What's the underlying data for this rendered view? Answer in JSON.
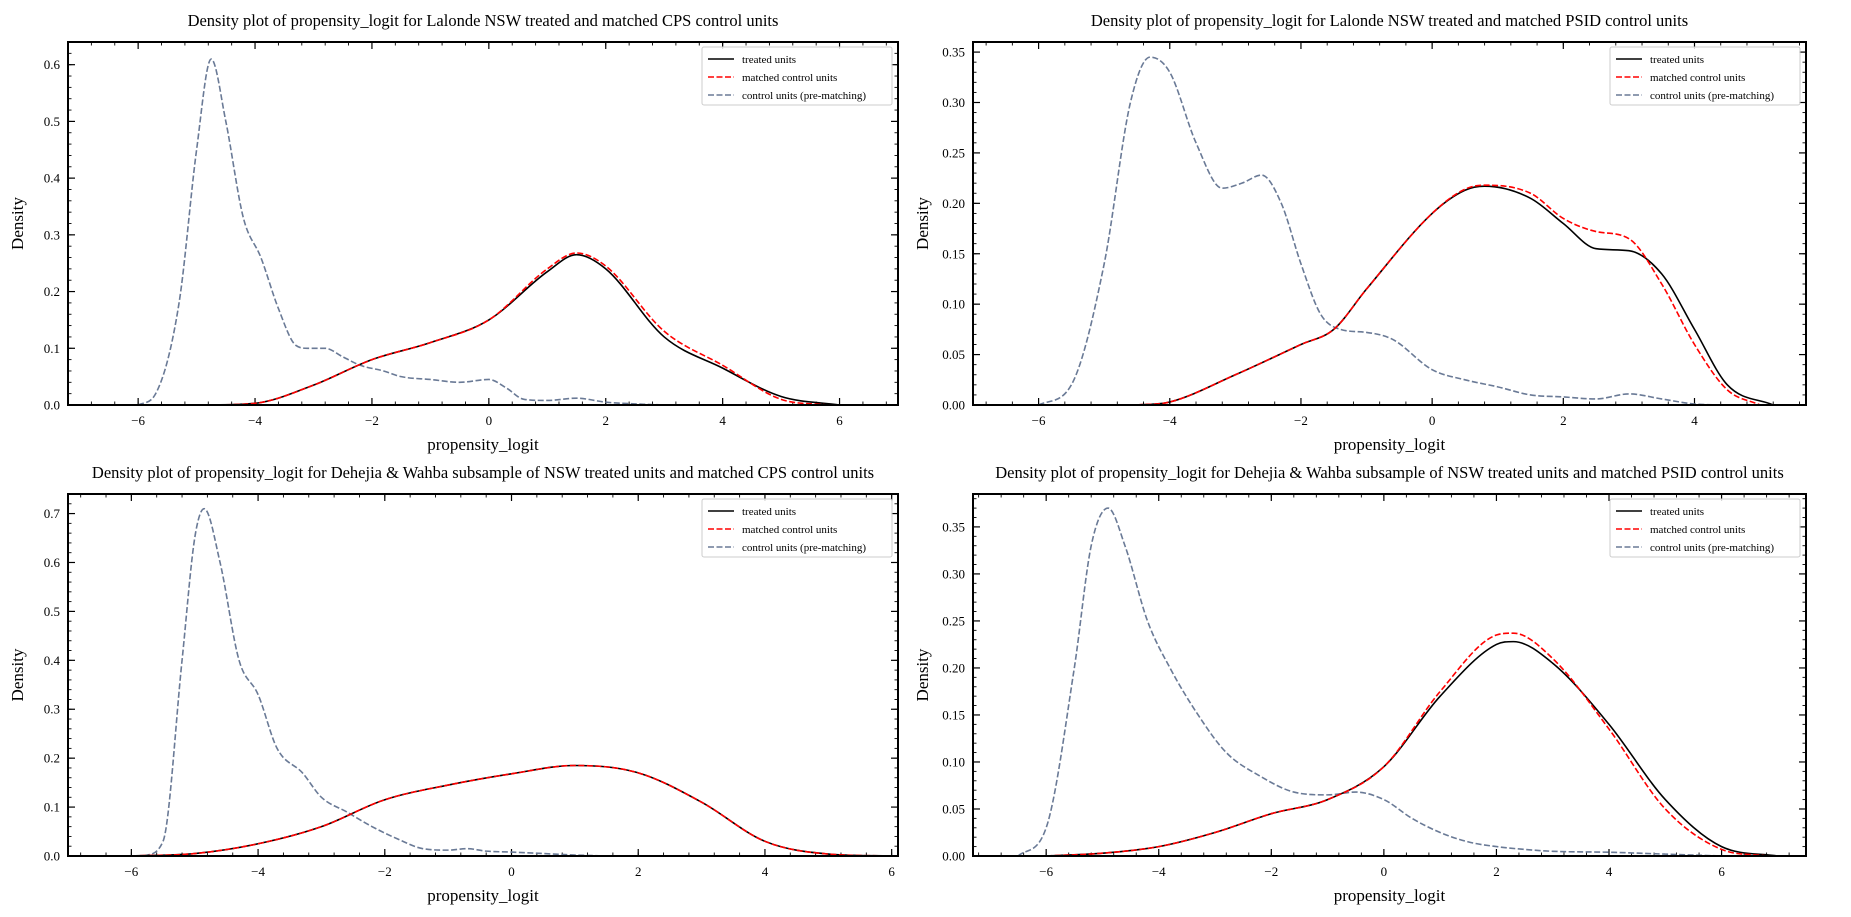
{
  "legend_labels": {
    "treated": "treated units",
    "matched": "matched control units",
    "control": "control units (pre-matching)"
  },
  "colors": {
    "treated": "#000000",
    "matched": "#ff0000",
    "control": "#6a7a96"
  },
  "chart_data": [
    {
      "type": "line",
      "title": "Density plot of  propensity_logit for Lalonde NSW treated and matched CPS control units",
      "xlabel": "propensity_logit",
      "ylabel": "Density",
      "xlim": [
        -7.2,
        7.0
      ],
      "ylim": [
        0,
        0.64
      ],
      "xticks": [
        -6,
        -4,
        -2,
        0,
        2,
        4,
        6
      ],
      "yticks": [
        0.0,
        0.1,
        0.2,
        0.3,
        0.4,
        0.5,
        0.6
      ],
      "ytick_labels": [
        "0.0",
        "0.1",
        "0.2",
        "0.3",
        "0.4",
        "0.5",
        "0.6"
      ],
      "legend_position": "top-right",
      "grid": false,
      "series": [
        {
          "name": "treated units",
          "key": "treated",
          "style": "solid",
          "x": [
            -4.8,
            -4,
            -3,
            -2,
            -1,
            0,
            1,
            1.5,
            2,
            3,
            4,
            5,
            6
          ],
          "y": [
            0,
            0.003,
            0.035,
            0.08,
            0.11,
            0.15,
            0.235,
            0.265,
            0.24,
            0.12,
            0.065,
            0.015,
            0
          ]
        },
        {
          "name": "matched control units",
          "key": "matched",
          "style": "dashed",
          "x": [
            -4.8,
            -4,
            -3,
            -2,
            -1,
            0,
            1,
            1.5,
            2,
            3,
            4,
            5,
            5.8
          ],
          "y": [
            0,
            0.003,
            0.035,
            0.08,
            0.11,
            0.15,
            0.24,
            0.268,
            0.245,
            0.13,
            0.07,
            0.01,
            0
          ]
        },
        {
          "name": "control units (pre-matching)",
          "key": "control",
          "style": "dashed",
          "x": [
            -6,
            -5.7,
            -5.3,
            -5,
            -4.75,
            -4.5,
            -4.2,
            -3.9,
            -3.6,
            -3.3,
            -3.1,
            -2.8,
            -2.5,
            -2.2,
            -1.8,
            -1.5,
            -1,
            -0.5,
            0,
            0.3,
            0.6,
            1,
            1.5,
            2,
            2.5,
            3
          ],
          "y": [
            0,
            0.02,
            0.18,
            0.45,
            0.61,
            0.5,
            0.33,
            0.26,
            0.17,
            0.105,
            0.1,
            0.1,
            0.085,
            0.07,
            0.06,
            0.05,
            0.045,
            0.04,
            0.045,
            0.03,
            0.01,
            0.008,
            0.012,
            0.005,
            0.002,
            0
          ]
        }
      ]
    },
    {
      "type": "line",
      "title": "Density plot of  propensity_logit for Lalonde NSW treated and matched PSID control units",
      "xlabel": "propensity_logit",
      "ylabel": "Density",
      "xlim": [
        -7.0,
        5.7
      ],
      "ylim": [
        0,
        0.36
      ],
      "xticks": [
        -6,
        -4,
        -2,
        0,
        2,
        4
      ],
      "yticks": [
        0.0,
        0.05,
        0.1,
        0.15,
        0.2,
        0.25,
        0.3,
        0.35
      ],
      "ytick_labels": [
        "0.00",
        "0.05",
        "0.10",
        "0.15",
        "0.20",
        "0.25",
        "0.30",
        "0.35"
      ],
      "legend_position": "top-right",
      "grid": false,
      "series": [
        {
          "name": "treated units",
          "key": "treated",
          "style": "solid",
          "x": [
            -4.5,
            -4,
            -3,
            -2,
            -1.5,
            -1,
            0,
            0.5,
            0.8,
            1.5,
            2,
            2.5,
            3,
            3.5,
            4,
            4.5,
            5.2
          ],
          "y": [
            0,
            0.003,
            0.03,
            0.06,
            0.075,
            0.115,
            0.19,
            0.213,
            0.217,
            0.205,
            0.18,
            0.155,
            0.153,
            0.13,
            0.075,
            0.02,
            0
          ]
        },
        {
          "name": "matched control units",
          "key": "matched",
          "style": "dashed",
          "x": [
            -4.5,
            -4,
            -3,
            -2,
            -1.5,
            -1,
            0,
            0.5,
            0.8,
            1.5,
            2,
            2.5,
            3,
            3.5,
            4,
            4.5,
            5
          ],
          "y": [
            0,
            0.003,
            0.03,
            0.06,
            0.075,
            0.115,
            0.19,
            0.214,
            0.218,
            0.21,
            0.185,
            0.172,
            0.165,
            0.12,
            0.06,
            0.015,
            0
          ]
        },
        {
          "name": "control units (pre-matching)",
          "key": "control",
          "style": "dashed",
          "x": [
            -6,
            -5.5,
            -5,
            -4.6,
            -4.3,
            -4,
            -3.6,
            -3.2,
            -2.9,
            -2.6,
            -2.3,
            -2,
            -1.7,
            -1.4,
            -1,
            -0.6,
            0,
            0.5,
            1,
            1.5,
            2,
            2.5,
            3,
            3.5,
            4,
            4.5
          ],
          "y": [
            0,
            0.02,
            0.14,
            0.3,
            0.345,
            0.33,
            0.26,
            0.215,
            0.22,
            0.228,
            0.2,
            0.14,
            0.09,
            0.075,
            0.072,
            0.065,
            0.035,
            0.025,
            0.018,
            0.01,
            0.008,
            0.006,
            0.011,
            0.006,
            0.001,
            0
          ]
        }
      ]
    },
    {
      "type": "line",
      "title": "Density plot of propensity_logit for Dehejia & Wahba subsample of NSW treated units and matched CPS control units",
      "xlabel": "propensity_logit",
      "ylabel": "Density",
      "xlim": [
        -7.0,
        6.1
      ],
      "ylim": [
        0,
        0.74
      ],
      "xticks": [
        -6,
        -4,
        -2,
        0,
        2,
        4,
        6
      ],
      "yticks": [
        0.0,
        0.1,
        0.2,
        0.3,
        0.4,
        0.5,
        0.6,
        0.7
      ],
      "ytick_labels": [
        "0.0",
        "0.1",
        "0.2",
        "0.3",
        "0.4",
        "0.5",
        "0.6",
        "0.7"
      ],
      "legend_position": "top-right",
      "grid": false,
      "series": [
        {
          "name": "treated units",
          "key": "treated",
          "style": "solid",
          "x": [
            -6,
            -5,
            -4,
            -3,
            -2,
            -1,
            0,
            1,
            2,
            3,
            4,
            5,
            6
          ],
          "y": [
            0,
            0.005,
            0.025,
            0.06,
            0.115,
            0.145,
            0.168,
            0.185,
            0.17,
            0.11,
            0.03,
            0.004,
            0
          ]
        },
        {
          "name": "matched control units",
          "key": "matched",
          "style": "dashed",
          "x": [
            -6,
            -5,
            -4,
            -3,
            -2,
            -1,
            0,
            1,
            2,
            3,
            4,
            5,
            6
          ],
          "y": [
            0,
            0.005,
            0.025,
            0.06,
            0.115,
            0.145,
            0.168,
            0.185,
            0.17,
            0.11,
            0.03,
            0.004,
            0
          ]
        },
        {
          "name": "control units (pre-matching)",
          "key": "control",
          "style": "dashed",
          "x": [
            -5.8,
            -5.5,
            -5.2,
            -5,
            -4.85,
            -4.6,
            -4.3,
            -4,
            -3.7,
            -3.3,
            -3,
            -2.6,
            -2.2,
            -1.8,
            -1.4,
            -1,
            -0.7,
            -0.4,
            0,
            0.5,
            1,
            1.5
          ],
          "y": [
            0,
            0.03,
            0.4,
            0.65,
            0.71,
            0.6,
            0.4,
            0.33,
            0.22,
            0.17,
            0.12,
            0.09,
            0.06,
            0.035,
            0.015,
            0.012,
            0.015,
            0.01,
            0.008,
            0.005,
            0.002,
            0
          ]
        }
      ]
    },
    {
      "type": "line",
      "title": "Density plot of propensity_logit for Dehejia & Wahba subsample of NSW treated units and matched PSID control units",
      "xlabel": "propensity_logit",
      "ylabel": "Density",
      "xlim": [
        -7.3,
        7.5
      ],
      "ylim": [
        0,
        0.385
      ],
      "xticks": [
        -6,
        -4,
        -2,
        0,
        2,
        4,
        6
      ],
      "yticks": [
        0.0,
        0.05,
        0.1,
        0.15,
        0.2,
        0.25,
        0.3,
        0.35
      ],
      "ytick_labels": [
        "0.00",
        "0.05",
        "0.10",
        "0.15",
        "0.20",
        "0.25",
        "0.30",
        "0.35"
      ],
      "legend_position": "top-right",
      "grid": false,
      "series": [
        {
          "name": "treated units",
          "key": "treated",
          "style": "solid",
          "x": [
            -6,
            -5,
            -4,
            -3,
            -2,
            -1,
            0,
            1,
            2,
            2.3,
            3,
            4,
            5,
            6,
            7
          ],
          "y": [
            0,
            0.003,
            0.01,
            0.025,
            0.045,
            0.06,
            0.095,
            0.17,
            0.225,
            0.228,
            0.205,
            0.14,
            0.06,
            0.01,
            0
          ]
        },
        {
          "name": "matched control units",
          "key": "matched",
          "style": "dashed",
          "x": [
            -6,
            -5,
            -4,
            -3,
            -2,
            -1,
            0,
            1,
            2,
            2.3,
            3,
            4,
            5,
            6,
            6.8
          ],
          "y": [
            0,
            0.003,
            0.01,
            0.025,
            0.045,
            0.06,
            0.095,
            0.175,
            0.235,
            0.237,
            0.21,
            0.135,
            0.05,
            0.007,
            0
          ]
        },
        {
          "name": "control units (pre-matching)",
          "key": "control",
          "style": "dashed",
          "x": [
            -6.5,
            -6,
            -5.5,
            -5.2,
            -4.9,
            -4.6,
            -4.2,
            -3.8,
            -3.3,
            -2.8,
            -2.2,
            -1.6,
            -1,
            -0.5,
            0,
            0.5,
            1,
            1.5,
            2,
            2.5,
            3,
            4,
            5,
            6
          ],
          "y": [
            0,
            0.03,
            0.2,
            0.33,
            0.37,
            0.33,
            0.25,
            0.2,
            0.15,
            0.11,
            0.085,
            0.068,
            0.065,
            0.068,
            0.06,
            0.04,
            0.025,
            0.015,
            0.01,
            0.007,
            0.005,
            0.004,
            0.002,
            0
          ]
        }
      ]
    }
  ]
}
